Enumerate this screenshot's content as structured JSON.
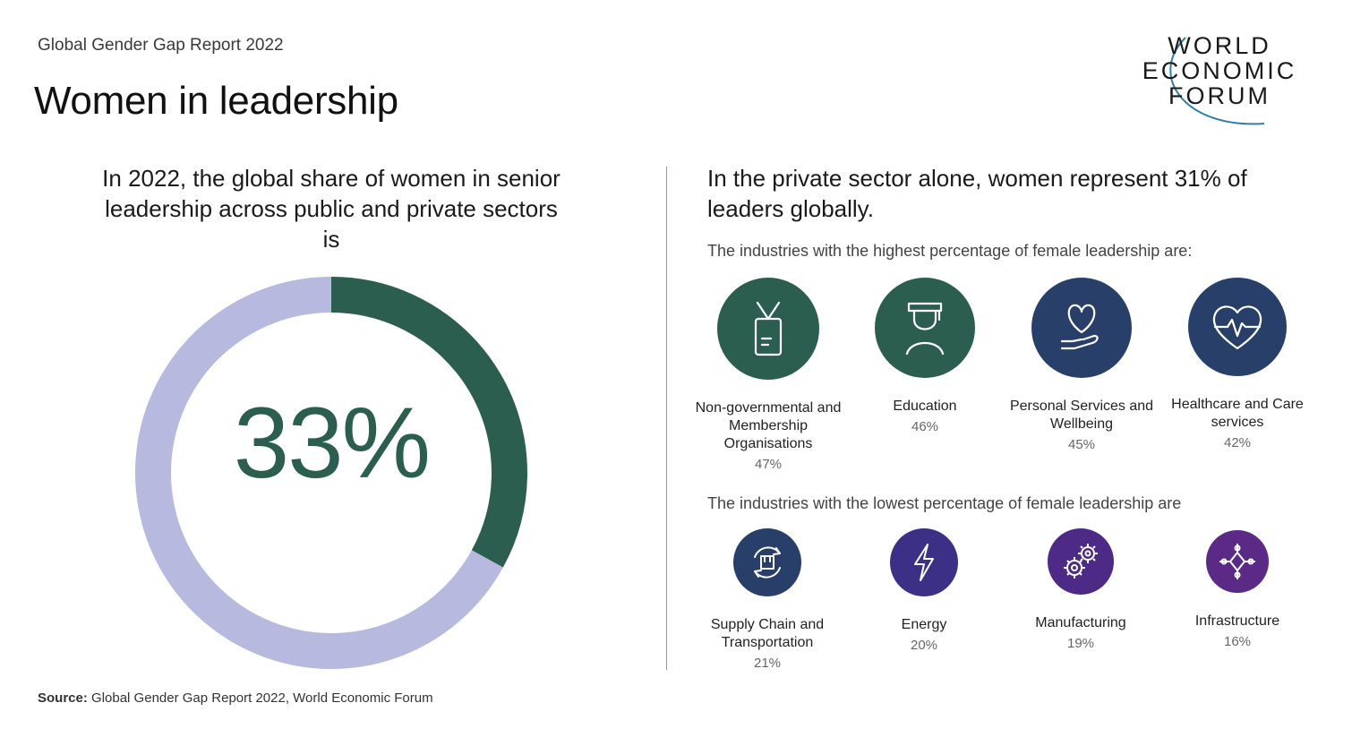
{
  "header": {
    "report": "Global Gender Gap Report 2022",
    "title": "Women in leadership"
  },
  "logo": {
    "lines": [
      "WORLD",
      "ECONOMIC",
      "FORUM"
    ]
  },
  "left": {
    "heading": "In 2022, the global share of women in senior leadership across public and private sectors is",
    "percentage": "33%"
  },
  "chart_data": {
    "type": "pie",
    "style": "donut",
    "values": [
      33,
      67
    ],
    "labels": [
      "33%",
      ""
    ],
    "colors": [
      "#2b5e4f",
      "#b7b9df"
    ]
  },
  "right": {
    "heading": "In the private sector alone, women represent 31% of leaders globally.",
    "highest_intro": "The industries with the highest percentage of female leadership are:",
    "lowest_intro": "The industries with the lowest percentage of female leadership are",
    "highest": [
      {
        "name": "Non-governmental and Membership Organisations",
        "value": "47%",
        "icon": "id-badge-icon",
        "color": "#2b5e4f"
      },
      {
        "name": "Education",
        "value": "46%",
        "icon": "graduate-icon",
        "color": "#2b5e4f"
      },
      {
        "name": "Personal Services and Wellbeing",
        "value": "45%",
        "icon": "heart-hand-icon",
        "color": "#283f6a"
      },
      {
        "name": "Healthcare and Care services",
        "value": "42%",
        "icon": "heartbeat-icon",
        "color": "#283f6a"
      }
    ],
    "lowest": [
      {
        "name": "Supply Chain and Transportation",
        "value": "21%",
        "icon": "cycle-box-icon",
        "color": "#283f6a"
      },
      {
        "name": "Energy",
        "value": "20%",
        "icon": "lightning-icon",
        "color": "#3b2f86"
      },
      {
        "name": "Manufacturing",
        "value": "19%",
        "icon": "gears-icon",
        "color": "#4d2a86"
      },
      {
        "name": "Infrastructure",
        "value": "16%",
        "icon": "network-icon",
        "color": "#5a2a86"
      }
    ]
  },
  "source": {
    "label": "Source:",
    "text": " Global Gender Gap Report 2022, World Economic Forum"
  }
}
